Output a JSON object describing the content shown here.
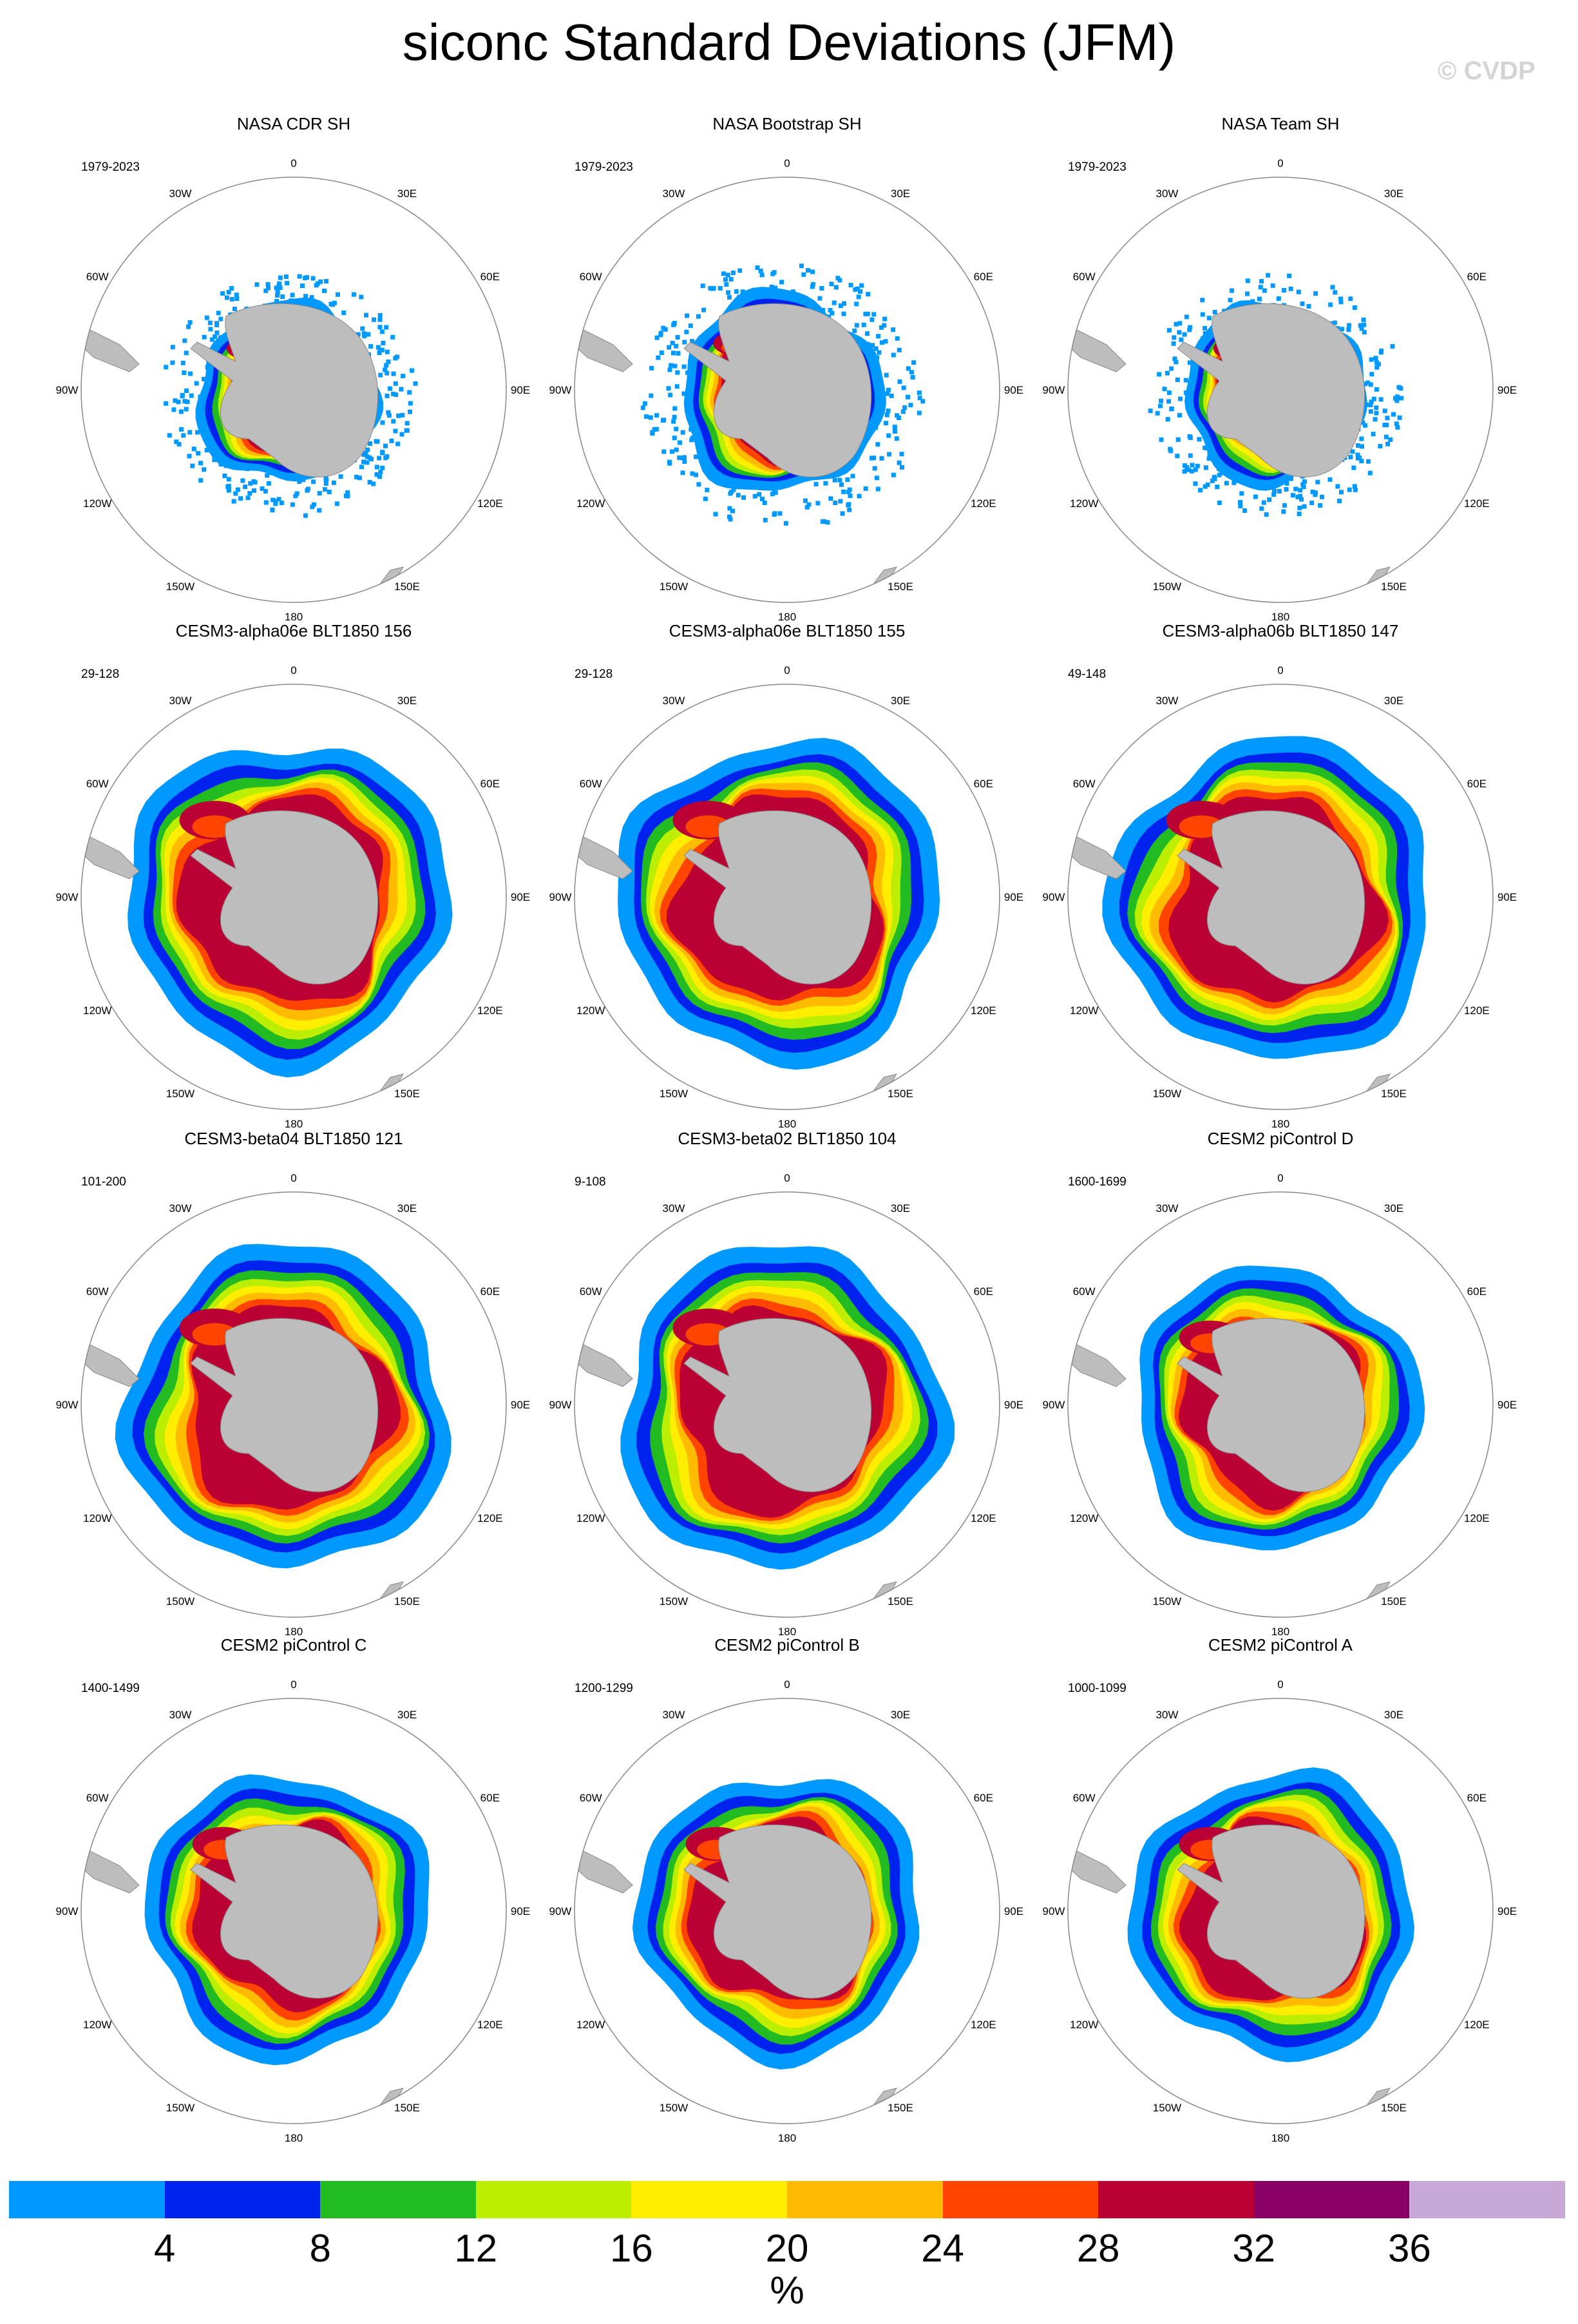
{
  "title": "siconc Standard Deviations (JFM)",
  "watermark": "© CVDP",
  "longitude_labels": [
    "0",
    "30E",
    "60E",
    "90E",
    "120E",
    "150E",
    "180",
    "150W",
    "120W",
    "90W",
    "60W",
    "30W"
  ],
  "panels": [
    {
      "title": "NASA CDR SH",
      "years": "1979-2023",
      "variant": "obs"
    },
    {
      "title": "NASA Bootstrap SH",
      "years": "1979-2023",
      "variant": "obs-wide"
    },
    {
      "title": "NASA Team SH",
      "years": "1979-2023",
      "variant": "obs"
    },
    {
      "title": "CESM3-alpha06e BLT1850 156",
      "years": "29-128",
      "variant": "model-large"
    },
    {
      "title": "CESM3-alpha06e BLT1850 155",
      "years": "29-128",
      "variant": "model-large"
    },
    {
      "title": "CESM3-alpha06b BLT1850 147",
      "years": "49-148",
      "variant": "model-large"
    },
    {
      "title": "CESM3-beta04 BLT1850 121",
      "years": "101-200",
      "variant": "model-large"
    },
    {
      "title": "CESM3-beta02 BLT1850 104",
      "years": "9-108",
      "variant": "model-large"
    },
    {
      "title": "CESM2 piControl D",
      "years": "1600-1699",
      "variant": "model"
    },
    {
      "title": "CESM2 piControl C",
      "years": "1400-1499",
      "variant": "model"
    },
    {
      "title": "CESM2 piControl B",
      "years": "1200-1299",
      "variant": "model"
    },
    {
      "title": "CESM2 piControl A",
      "years": "1000-1099",
      "variant": "model"
    }
  ],
  "colorbar": {
    "colors": [
      "#0099ff",
      "#0022ee",
      "#22bb22",
      "#bbee00",
      "#ffee00",
      "#ffbb00",
      "#ff4400",
      "#bb0033",
      "#880066",
      "#c7a8d6"
    ],
    "ticks": [
      "4",
      "8",
      "12",
      "16",
      "20",
      "24",
      "28",
      "32",
      "36"
    ],
    "unit": "%"
  }
}
